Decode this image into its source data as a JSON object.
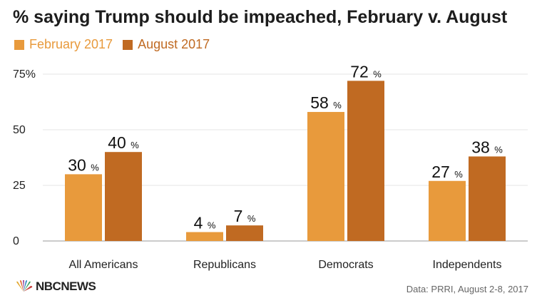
{
  "header": {
    "title": "% saying Trump should be impeached, February v. August"
  },
  "legend": [
    {
      "label": "February 2017",
      "color": "#E89A3C"
    },
    {
      "label": "August 2017",
      "color": "#C06A22"
    }
  ],
  "chart_data": {
    "type": "bar",
    "title": "% saying Trump should be impeached, February v. August",
    "categories": [
      "All Americans",
      "Republicans",
      "Democrats",
      "Independents"
    ],
    "series": [
      {
        "name": "February 2017",
        "color": "#E89A3C",
        "values": [
          30,
          4,
          58,
          27
        ]
      },
      {
        "name": "August 2017",
        "color": "#C06A22",
        "values": [
          40,
          7,
          72,
          38
        ]
      }
    ],
    "yticks": [
      "0",
      "25",
      "50",
      "75%"
    ],
    "ytick_values": [
      0,
      25,
      50,
      75
    ],
    "ylim": [
      0,
      75
    ],
    "value_suffix": "%",
    "grid": true,
    "legend_position": "top-left"
  },
  "footer": {
    "logo_text": "NBCNEWS",
    "source": "Data: PRRI, August 2-8, 2017"
  }
}
